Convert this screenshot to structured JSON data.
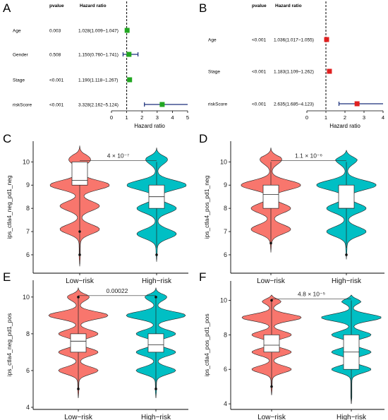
{
  "panels": {
    "A": {
      "label": "A"
    },
    "B": {
      "label": "B"
    },
    "C": {
      "label": "C"
    },
    "D": {
      "label": "D"
    },
    "E": {
      "label": "E"
    },
    "F": {
      "label": "F"
    }
  },
  "chart_data": [
    {
      "panel": "A",
      "type": "forest",
      "header_p": "pvalue",
      "header_hr": "Hazard ratio",
      "xlabel": "Hazard ratio",
      "xlim": [
        0,
        5
      ],
      "xticks": [
        "0",
        "1",
        "2",
        "3",
        "4",
        "5"
      ],
      "reference_line": 1,
      "point_color": "#22a722",
      "rows": [
        {
          "name": "Age",
          "pvalue": "0.003",
          "hr_text": "1.028(1.009~1.047)",
          "hr": 1.028,
          "lower": 1.009,
          "upper": 1.047
        },
        {
          "name": "Gender",
          "pvalue": "0.508",
          "hr_text": "1.150(0.760~1.741)",
          "hr": 1.15,
          "lower": 0.76,
          "upper": 1.741
        },
        {
          "name": "Stage",
          "pvalue": "<0.001",
          "hr_text": "1.190(1.118~1.267)",
          "hr": 1.19,
          "lower": 1.118,
          "upper": 1.267
        },
        {
          "name": "riskScore",
          "pvalue": "<0.001",
          "hr_text": "3.328(2.162~5.124)",
          "hr": 3.328,
          "lower": 2.162,
          "upper": 5.124
        }
      ]
    },
    {
      "panel": "B",
      "type": "forest",
      "header_p": "pvalue",
      "header_hr": "Hazard ratio",
      "xlabel": "Hazard ratio",
      "xlim": [
        0,
        4
      ],
      "xticks": [
        "0",
        "1",
        "2",
        "3",
        "4"
      ],
      "reference_line": 1,
      "point_color": "#e02020",
      "rows": [
        {
          "name": "Age",
          "pvalue": "<0.001",
          "hr_text": "1.036(1.017~1.055)",
          "hr": 1.036,
          "lower": 1.017,
          "upper": 1.055
        },
        {
          "name": "Stage",
          "pvalue": "<0.001",
          "hr_text": "1.183(1.109~1.262)",
          "hr": 1.183,
          "lower": 1.109,
          "upper": 1.262
        },
        {
          "name": "riskScore",
          "pvalue": "<0.001",
          "hr_text": "2.635(1.685~4.123)",
          "hr": 2.635,
          "lower": 1.685,
          "upper": 4.123
        }
      ]
    },
    {
      "panel": "C",
      "type": "violin",
      "ylabel": "ips_ctla4_neg_pd1_neg",
      "ylim": [
        5.3,
        10.8
      ],
      "yticks": [
        6,
        7,
        8,
        9,
        10
      ],
      "categories": [
        "Low−risk",
        "High−risk"
      ],
      "colors": [
        "#f8766d",
        "#00bfc4"
      ],
      "significance": "4 × 10⁻⁷",
      "groups": [
        {
          "min": 6.0,
          "q1": 9.0,
          "median": 9.2,
          "q3": 10.0,
          "max": 10.0,
          "modes": [
            10.1,
            9.0,
            8.1,
            7.1
          ],
          "outliers": [
            7.0,
            6.0
          ],
          "vmin": 5.5,
          "vmax": 10.7
        },
        {
          "min": 6.3,
          "q1": 8.0,
          "median": 8.5,
          "q3": 9.0,
          "max": 10.0,
          "modes": [
            10.1,
            9.0,
            8.0,
            6.9
          ],
          "outliers": [
            6.0
          ],
          "vmin": 5.7,
          "vmax": 10.6
        }
      ]
    },
    {
      "panel": "D",
      "type": "violin",
      "ylabel": "ips_ctla4_pos_pd1_neg",
      "ylim": [
        5.3,
        10.8
      ],
      "yticks": [
        6,
        7,
        8,
        9,
        10
      ],
      "categories": [
        "Low−risk",
        "High−risk"
      ],
      "colors": [
        "#f8766d",
        "#00bfc4"
      ],
      "significance": "1.1 × 10⁻⁶",
      "groups": [
        {
          "min": 6.5,
          "q1": 8.0,
          "median": 8.6,
          "q3": 9.0,
          "max": 10.0,
          "modes": [
            10.1,
            9.0,
            8.0,
            7.1
          ],
          "outliers": [
            6.5
          ],
          "vmin": 6.1,
          "vmax": 10.6
        },
        {
          "min": 6.3,
          "q1": 8.0,
          "median": 8.0,
          "q3": 9.0,
          "max": 10.0,
          "modes": [
            10.1,
            9.0,
            8.0,
            7.0
          ],
          "outliers": [
            6.0
          ],
          "vmin": 5.8,
          "vmax": 10.5
        }
      ]
    },
    {
      "panel": "E",
      "type": "violin",
      "ylabel": "ips_ctla4_neg_pd1_pos",
      "ylim": [
        4.0,
        10.8
      ],
      "yticks": [
        4,
        6,
        8,
        10
      ],
      "categories": [
        "Low−risk",
        "High−risk"
      ],
      "colors": [
        "#f8766d",
        "#00bfc4"
      ],
      "significance": "0.00022",
      "groups": [
        {
          "min": 5.0,
          "q1": 7.0,
          "median": 7.6,
          "q3": 8.0,
          "max": 10.0,
          "modes": [
            10.0,
            9.0,
            8.0,
            7.0,
            6.0
          ],
          "outliers": [
            10.0,
            5.0
          ],
          "vmin": 4.5,
          "vmax": 10.5
        },
        {
          "min": 5.0,
          "q1": 7.0,
          "median": 7.4,
          "q3": 8.0,
          "max": 10.0,
          "modes": [
            10.0,
            9.0,
            8.0,
            7.0,
            6.0
          ],
          "outliers": [
            10.0,
            5.0
          ],
          "vmin": 4.5,
          "vmax": 10.5
        }
      ]
    },
    {
      "panel": "F",
      "type": "violin",
      "ylabel": "ips_ctla4_pos_pd1_pos",
      "ylim": [
        3.8,
        11.0
      ],
      "yticks": [
        4,
        6,
        8,
        10
      ],
      "categories": [
        "Low−risk",
        "High−risk"
      ],
      "colors": [
        "#f8766d",
        "#00bfc4"
      ],
      "significance": "4.8 × 10⁻⁵",
      "groups": [
        {
          "min": 5.0,
          "q1": 7.0,
          "median": 7.4,
          "q3": 8.0,
          "max": 10.0,
          "modes": [
            10.0,
            9.0,
            8.0,
            7.0,
            6.0
          ],
          "outliers": [
            10.0,
            5.0
          ],
          "vmin": 4.5,
          "vmax": 10.3
        },
        {
          "min": 4.0,
          "q1": 6.0,
          "median": 7.0,
          "q3": 8.0,
          "max": 10.0,
          "modes": [
            10.0,
            9.0,
            8.0,
            7.0,
            6.0
          ],
          "outliers": [],
          "vmin": 4.0,
          "vmax": 10.3
        }
      ]
    }
  ]
}
